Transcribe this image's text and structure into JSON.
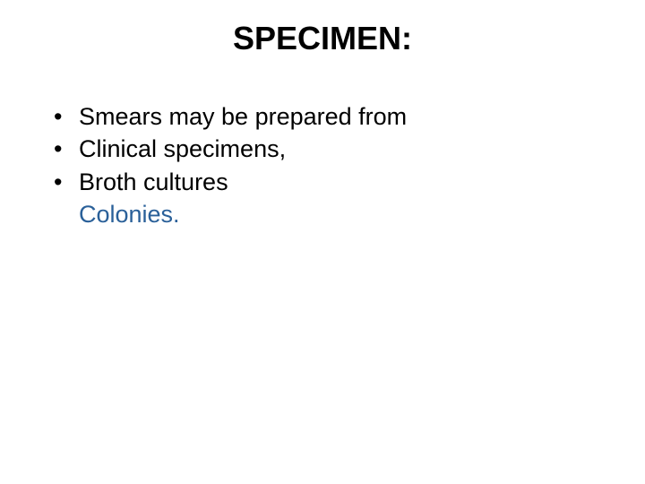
{
  "title": "SPECIMEN:",
  "lines": [
    {
      "bullet": true,
      "text": "Smears may be prepared from",
      "color": "#000000"
    },
    {
      "bullet": true,
      "text": "Clinical specimens,",
      "color": "#000000"
    },
    {
      "bullet": true,
      "text": "Broth cultures",
      "color": "#000000"
    },
    {
      "bullet": false,
      "text": "Colonies.",
      "color": "#2a6099"
    }
  ],
  "styling": {
    "background_color": "#ffffff",
    "title_fontsize": 36,
    "title_weight": "bold",
    "body_fontsize": 27,
    "bullet_char": "•",
    "colors": {
      "black": "#000000",
      "blue": "#2a6099"
    }
  }
}
